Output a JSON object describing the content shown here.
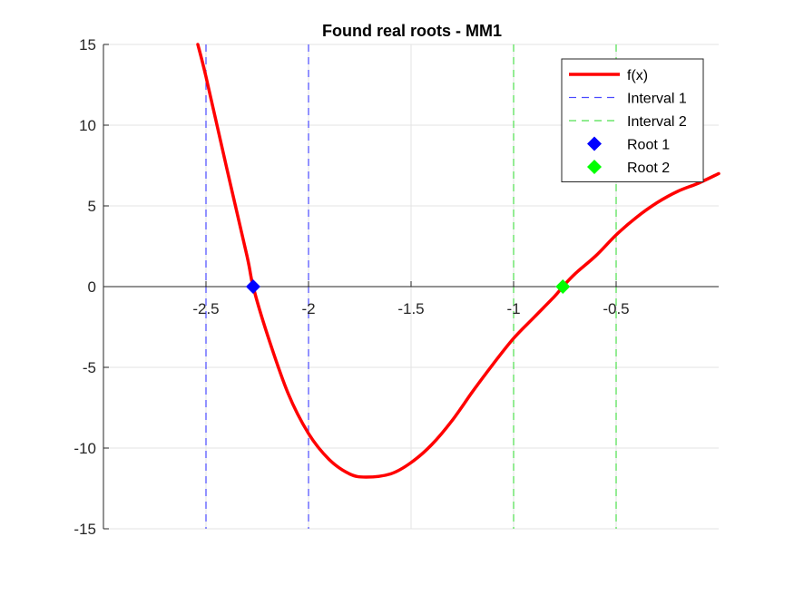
{
  "chart_data": {
    "type": "line",
    "title": "Found real roots - MM1",
    "xlabel": "",
    "ylabel": "",
    "xlim": [
      -3,
      0
    ],
    "ylim": [
      -15,
      15
    ],
    "grid": true,
    "x_axis_at": 0,
    "legend_placement": "top-right",
    "x_ticks": [
      -2.5,
      -2,
      -1.5,
      -1,
      -0.5
    ],
    "x_tick_labels": [
      "-2.5",
      "-2",
      "-1.5",
      "-1",
      "-0.5"
    ],
    "y_ticks": [
      15,
      10,
      5,
      0,
      -5,
      -10,
      -15
    ],
    "y_tick_labels": [
      "15",
      "10",
      "5",
      "0",
      "-5",
      "-10",
      "-15"
    ],
    "series": [
      {
        "name": "f(x)",
        "kind": "line",
        "color": "#ff0000",
        "x": [
          -2.54,
          -2.5,
          -2.4,
          -2.3,
          -2.27,
          -2.2,
          -2.1,
          -2.0,
          -1.9,
          -1.8,
          -1.72,
          -1.6,
          -1.5,
          -1.4,
          -1.3,
          -1.2,
          -1.1,
          -1.0,
          -0.9,
          -0.8,
          -0.76,
          -0.7,
          -0.6,
          -0.5,
          -0.4,
          -0.3,
          -0.2,
          -0.1,
          0.0
        ],
        "y": [
          15.0,
          13.0,
          7.4,
          1.9,
          0.0,
          -3.0,
          -6.6,
          -9.1,
          -10.7,
          -11.6,
          -11.8,
          -11.6,
          -10.9,
          -9.8,
          -8.3,
          -6.5,
          -4.8,
          -3.2,
          -1.9,
          -0.6,
          0.0,
          0.8,
          1.9,
          3.2,
          4.3,
          5.2,
          5.9,
          6.4,
          7.0
        ]
      },
      {
        "name": "Interval 1",
        "kind": "vline",
        "color": "#4a4aff",
        "x": [
          -2.5,
          -2.0
        ]
      },
      {
        "name": "Interval 2",
        "kind": "vline",
        "color": "#4ee04e",
        "x": [
          -1.0,
          -0.5
        ]
      },
      {
        "name": "Root 1",
        "kind": "marker",
        "color": "#0000ff",
        "x": [
          -2.27
        ],
        "y": [
          0
        ]
      },
      {
        "name": "Root 2",
        "kind": "marker",
        "color": "#00ff00",
        "x": [
          -0.76
        ],
        "y": [
          0
        ]
      }
    ]
  }
}
